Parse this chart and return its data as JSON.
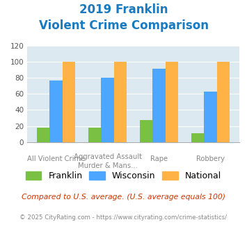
{
  "title_line1": "2019 Franklin",
  "title_line2": "Violent Crime Comparison",
  "cat_labels_top": [
    "",
    "Aggravated Assault",
    "",
    ""
  ],
  "cat_labels_bot": [
    "All Violent Crime",
    "Murder & Mans...",
    "Rape",
    "Robbery"
  ],
  "franklin": [
    18,
    18,
    27,
    11
  ],
  "wisconsin": [
    77,
    80,
    91,
    63
  ],
  "national": [
    100,
    100,
    100,
    100
  ],
  "franklin_color": "#7ac143",
  "wisconsin_color": "#4da6ff",
  "national_color": "#ffb347",
  "title_color": "#1a7abf",
  "bg_color": "#dce9f0",
  "ylim": [
    0,
    120
  ],
  "yticks": [
    0,
    20,
    40,
    60,
    80,
    100,
    120
  ],
  "footnote1": "Compared to U.S. average. (U.S. average equals 100)",
  "footnote2": "© 2025 CityRating.com - https://www.cityrating.com/crime-statistics/",
  "footnote1_color": "#cc3300",
  "footnote2_color": "#888888"
}
